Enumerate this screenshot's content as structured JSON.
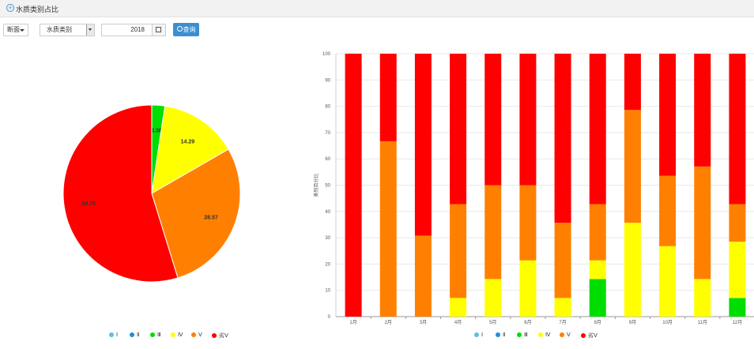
{
  "header": {
    "title": "水质类别占比"
  },
  "toolbar": {
    "section_label": "断面",
    "type_select_value": "水质类别",
    "year_value": "2018",
    "query_label": "查询"
  },
  "legend": [
    {
      "name": "Ⅰ",
      "color": "#5bc0de"
    },
    {
      "name": "Ⅱ",
      "color": "#1f8fd8"
    },
    {
      "name": "Ⅲ",
      "color": "#00dd00"
    },
    {
      "name": "Ⅳ",
      "color": "#ffff00"
    },
    {
      "name": "Ⅴ",
      "color": "#ff8000"
    },
    {
      "name": "劣Ⅴ",
      "color": "#ff0000"
    }
  ],
  "chart_data": [
    {
      "type": "pie",
      "title": "",
      "slices": [
        {
          "name": "Ⅲ",
          "value": 2.38,
          "label": "2.38",
          "color": "#00dd00"
        },
        {
          "name": "Ⅳ",
          "value": 14.29,
          "label": "14.29",
          "color": "#ffff00"
        },
        {
          "name": "Ⅴ",
          "value": 28.57,
          "label": "28.57",
          "color": "#ff8000"
        },
        {
          "name": "劣Ⅴ",
          "value": 54.76,
          "label": "54.76",
          "color": "#ff0000"
        }
      ]
    },
    {
      "type": "bar",
      "stacked": true,
      "ylabel": "类别百分比",
      "ylim": [
        0,
        100
      ],
      "yticks": [
        "0",
        "10",
        "20",
        "30",
        "40",
        "50",
        "60",
        "70",
        "80",
        "90",
        "100"
      ],
      "categories": [
        "1月",
        "2月",
        "3月",
        "4月",
        "5月",
        "6月",
        "7月",
        "8月",
        "9月",
        "10月",
        "11月",
        "12月"
      ],
      "series": [
        {
          "name": "Ⅰ",
          "color": "#5bc0de",
          "values": [
            0,
            0,
            0,
            0,
            0,
            0,
            0,
            0,
            0,
            0,
            0,
            0
          ]
        },
        {
          "name": "Ⅱ",
          "color": "#1f8fd8",
          "values": [
            0,
            0,
            0,
            0,
            0,
            0,
            0,
            0,
            0,
            0,
            0,
            0
          ]
        },
        {
          "name": "Ⅲ",
          "color": "#00dd00",
          "values": [
            0,
            0,
            0,
            0,
            0,
            0,
            0,
            14.3,
            0,
            0,
            0,
            7.1
          ]
        },
        {
          "name": "Ⅳ",
          "color": "#ffff00",
          "values": [
            0,
            0,
            0,
            7.1,
            14.3,
            21.4,
            7.1,
            7.1,
            35.7,
            26.8,
            14.3,
            21.4
          ]
        },
        {
          "name": "Ⅴ",
          "color": "#ff8000",
          "values": [
            0,
            66.7,
            30.8,
            35.7,
            35.7,
            28.6,
            28.6,
            21.4,
            42.9,
            26.8,
            42.8,
            14.3
          ]
        },
        {
          "name": "劣Ⅴ",
          "color": "#ff0000",
          "values": [
            100,
            33.3,
            69.2,
            57.2,
            50,
            50,
            64.3,
            57.2,
            21.4,
            46.4,
            42.9,
            57.2
          ]
        }
      ]
    }
  ]
}
